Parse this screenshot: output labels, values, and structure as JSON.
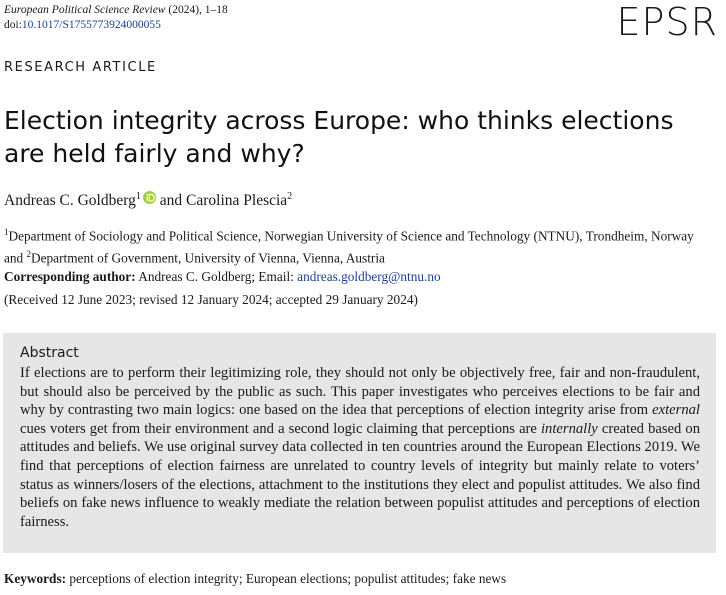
{
  "header": {
    "journal": "European Political Science Review",
    "journal_meta": "(2024), 1–18",
    "doi_prefix": "doi:",
    "doi": "10.1017/S1755773924000055",
    "logo": "EPSR"
  },
  "article_type": "RESEARCH ARTICLE",
  "title": "Election integrity across Europe: who thinks elections are held fairly and why?",
  "authors": [
    {
      "name": "Andreas C. Goldberg",
      "sup": "1"
    },
    {
      "name": "Carolina Plescia",
      "sup": "2"
    }
  ],
  "author_joiner": "and",
  "affiliations": [
    {
      "sup": "1",
      "text": "Department of Sociology and Political Science, Norwegian University of Science and Technology (NTNU), Trondheim, Norway"
    },
    {
      "sup": "2",
      "text": "Department of Government, University of Vienna, Vienna, Austria"
    }
  ],
  "affiliation_joiner": "and",
  "corresponding": {
    "label": "Corresponding author:",
    "text": "Andreas C. Goldberg; Email:",
    "email": "andreas.goldberg@ntnu.no"
  },
  "history": "(Received 12 June 2023; revised 12 January 2024; accepted 29 January 2024)",
  "abstract": {
    "heading": "Abstract",
    "parts": [
      "If elections are to perform their legitimizing role, they should not only be objectively free, fair and non-fraudulent, but should also be perceived by the public as such. This paper investigates who perceives elections to be fair and why by contrasting two main logics: one based on the idea that perceptions of election integrity arise from ",
      "external",
      " cues voters get from their environment and a second logic claiming that perceptions are ",
      "internally",
      " created based on attitudes and beliefs. We use original survey data collected in ten countries around the European Elections 2019. We find that perceptions of election fairness are unrelated to country levels of integrity but mainly relate to voters’ status as winners/losers of the elections, attachment to the institutions they elect and populist attitudes. We also find beliefs on fake news influence to weakly mediate the relation between populist attitudes and perceptions of election fairness."
    ]
  },
  "keywords": {
    "label": "Keywords:",
    "text": "perceptions of election integrity; European elections; populist attitudes; fake news"
  }
}
